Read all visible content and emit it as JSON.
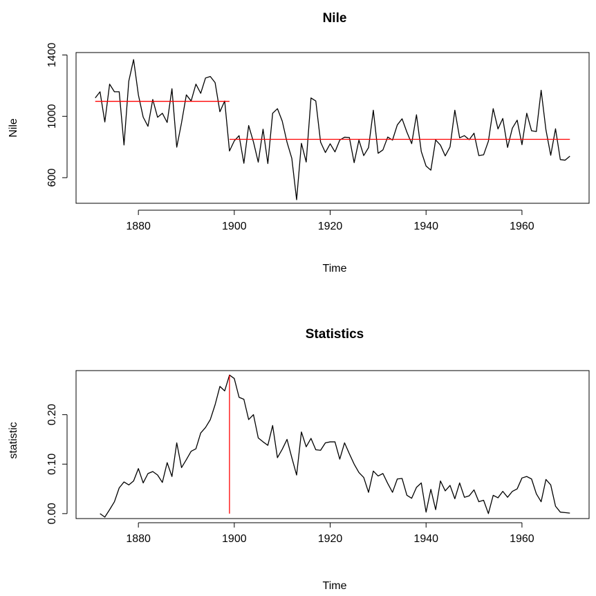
{
  "chart_data": [
    {
      "type": "line",
      "title": "Nile",
      "xlabel": "Time",
      "ylabel": "Nile",
      "xlim": [
        1867,
        1974
      ],
      "ylim": [
        433,
        1416
      ],
      "xticks": [
        1880,
        1900,
        1920,
        1940,
        1960
      ],
      "yticks": [
        600,
        1000,
        1400
      ],
      "grid": false,
      "series": [
        {
          "color": "#000000",
          "x_start": 1871,
          "values": [
            1120,
            1160,
            963,
            1210,
            1160,
            1160,
            813,
            1230,
            1370,
            1140,
            995,
            935,
            1110,
            994,
            1020,
            960,
            1180,
            799,
            958,
            1140,
            1100,
            1210,
            1150,
            1250,
            1260,
            1220,
            1030,
            1100,
            774,
            840,
            874,
            694,
            940,
            833,
            701,
            916,
            692,
            1020,
            1050,
            969,
            831,
            726,
            456,
            824,
            702,
            1120,
            1100,
            832,
            764,
            821,
            768,
            845,
            864,
            862,
            698,
            845,
            744,
            796,
            1040,
            759,
            781,
            865,
            845,
            944,
            984,
            897,
            822,
            1010,
            771,
            676,
            649,
            846,
            812,
            742,
            801,
            1040,
            860,
            874,
            848,
            890,
            744,
            749,
            838,
            1050,
            918,
            986,
            797,
            923,
            975,
            815,
            1020,
            906,
            901,
            1170,
            912,
            746,
            919,
            718,
            714,
            740
          ]
        }
      ],
      "segments": [
        {
          "color": "#ff0000",
          "x": [
            1871,
            1899
          ],
          "y": [
            1097.75,
            1097.75
          ]
        },
        {
          "color": "#ff0000",
          "x": [
            1899,
            1970
          ],
          "y": [
            849.97,
            849.97
          ]
        }
      ]
    },
    {
      "type": "line",
      "title": "Statistics",
      "xlabel": "Time",
      "ylabel": "statistic",
      "xlim": [
        1867,
        1974
      ],
      "ylim": [
        -0.01,
        0.289
      ],
      "xticks": [
        1880,
        1900,
        1920,
        1940,
        1960
      ],
      "yticks": [
        0.0,
        0.1,
        0.2
      ],
      "ytick_labels": [
        "0.00",
        "0.10",
        "0.20"
      ],
      "grid": false,
      "series": [
        {
          "color": "#000000",
          "x_start": 1872,
          "values": [
            0.0,
            -0.007,
            0.008,
            0.024,
            0.052,
            0.064,
            0.058,
            0.066,
            0.091,
            0.062,
            0.081,
            0.085,
            0.078,
            0.063,
            0.103,
            0.075,
            0.143,
            0.093,
            0.109,
            0.126,
            0.131,
            0.163,
            0.174,
            0.19,
            0.22,
            0.257,
            0.248,
            0.28,
            0.273,
            0.235,
            0.231,
            0.19,
            0.2,
            0.153,
            0.145,
            0.138,
            0.178,
            0.113,
            0.13,
            0.15,
            0.113,
            0.078,
            0.165,
            0.135,
            0.152,
            0.129,
            0.128,
            0.143,
            0.145,
            0.145,
            0.11,
            0.143,
            0.121,
            0.1,
            0.083,
            0.073,
            0.043,
            0.086,
            0.076,
            0.081,
            0.061,
            0.043,
            0.07,
            0.071,
            0.037,
            0.031,
            0.053,
            0.062,
            0.003,
            0.049,
            0.008,
            0.066,
            0.046,
            0.057,
            0.03,
            0.062,
            0.033,
            0.036,
            0.048,
            0.024,
            0.027,
            0.0,
            0.037,
            0.032,
            0.045,
            0.033,
            0.045,
            0.05,
            0.072,
            0.075,
            0.07,
            0.04,
            0.024,
            0.069,
            0.058,
            0.015,
            0.003,
            0.002,
            0.001
          ]
        }
      ],
      "segments": [
        {
          "color": "#ff0000",
          "x": [
            1899,
            1899
          ],
          "y": [
            0.0,
            0.28
          ]
        }
      ]
    }
  ]
}
